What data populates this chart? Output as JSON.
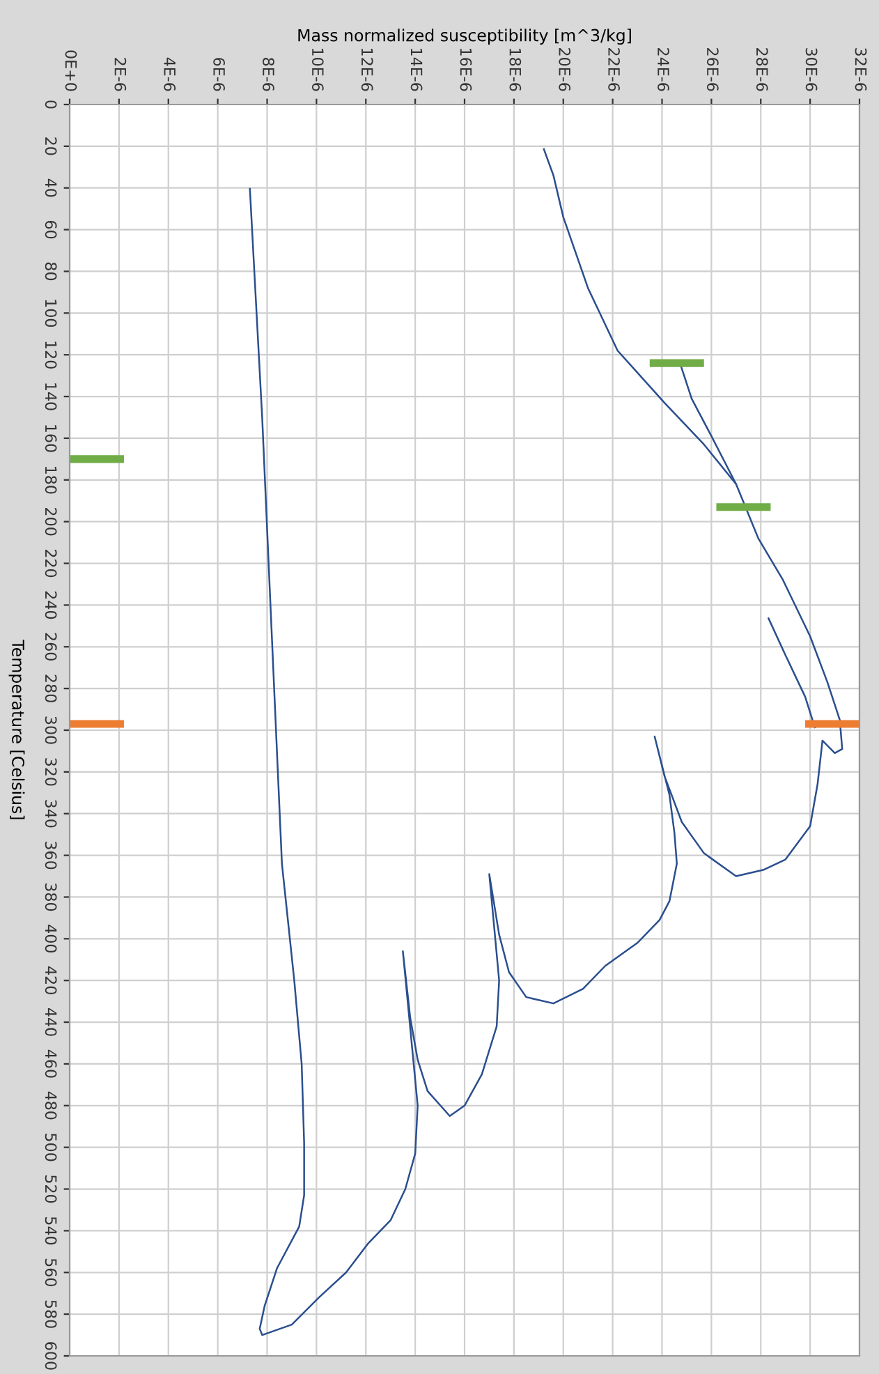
{
  "chart_data": {
    "type": "line",
    "xlabel": "Mass normalized susceptibility [m^3/kg]",
    "ylabel": "Temperature [Celsius]",
    "xlim": [
      0,
      3.2e-05
    ],
    "ylim": [
      600,
      0
    ],
    "xticks": [
      {
        "value": 0,
        "label": "0E+0"
      },
      {
        "value": 2e-06,
        "label": "2E-6"
      },
      {
        "value": 4e-06,
        "label": "4E-6"
      },
      {
        "value": 6e-06,
        "label": "6E-6"
      },
      {
        "value": 8e-06,
        "label": "8E-6"
      },
      {
        "value": 1e-05,
        "label": "10E-6"
      },
      {
        "value": 1.2e-05,
        "label": "12E-6"
      },
      {
        "value": 1.4e-05,
        "label": "14E-6"
      },
      {
        "value": 1.6e-05,
        "label": "16E-6"
      },
      {
        "value": 1.8e-05,
        "label": "18E-6"
      },
      {
        "value": 2e-05,
        "label": "20E-6"
      },
      {
        "value": 2.2e-05,
        "label": "22E-6"
      },
      {
        "value": 2.4e-05,
        "label": "24E-6"
      },
      {
        "value": 2.6e-05,
        "label": "26E-6"
      },
      {
        "value": 2.8e-05,
        "label": "28E-6"
      },
      {
        "value": 3e-05,
        "label": "30E-6"
      },
      {
        "value": 3.2e-05,
        "label": "32E-6"
      }
    ],
    "yticks": [
      0,
      20,
      40,
      60,
      80,
      100,
      120,
      140,
      160,
      180,
      200,
      220,
      240,
      260,
      280,
      300,
      320,
      340,
      360,
      380,
      400,
      420,
      440,
      460,
      480,
      500,
      520,
      540,
      560,
      580,
      600
    ],
    "grid": true,
    "series": [
      {
        "color": "#2b4f8e",
        "x": [
          1.92e-05,
          1.96e-05,
          2e-05,
          2.1e-05,
          2.22e-05,
          2.41e-05,
          2.57e-05,
          2.7e-05,
          2.79e-05,
          2.89e-05,
          3e-05,
          3.07e-05,
          3.12e-05,
          3.13e-05,
          3.1e-05,
          3.05e-05,
          3.03e-05,
          3e-05,
          2.9e-05,
          2.81e-05,
          2.7e-05,
          2.57e-05,
          2.48e-05,
          2.41e-05,
          2.37e-05,
          2.43e-05,
          2.45e-05,
          2.46e-05,
          2.43e-05,
          2.39e-05,
          2.3e-05,
          2.17e-05,
          2.08e-05,
          1.96e-05,
          1.85e-05,
          1.78e-05,
          1.74e-05,
          1.7e-05,
          1.74e-05,
          1.73e-05,
          1.67e-05,
          1.6e-05,
          1.54e-05,
          1.45e-05,
          1.41e-05,
          1.38e-05,
          1.35e-05,
          1.41e-05,
          1.4e-05,
          1.36e-05,
          1.3e-05,
          1.21e-05,
          1.12e-05,
          1.01e-05,
          9e-06,
          7.8e-06,
          7.7e-06,
          7.9e-06,
          8.4e-06,
          9.3e-06,
          9.5e-06,
          9.5e-06,
          9.4e-06,
          9.1e-06,
          8.6e-06,
          8.3e-06,
          7.8e-06,
          7.3e-06
        ],
        "values": [
          21,
          34,
          54,
          88,
          118,
          143,
          163,
          182,
          208,
          228,
          255,
          277,
          295,
          309,
          311,
          305,
          326,
          346,
          362,
          367,
          370,
          359,
          344,
          322,
          303,
          331,
          349,
          364,
          382,
          391,
          402,
          413,
          424,
          431,
          428,
          416,
          398,
          369,
          420,
          442,
          465,
          480,
          485,
          473,
          458,
          438,
          406,
          480,
          503,
          520,
          535,
          546,
          560,
          572,
          585,
          590,
          587,
          576,
          558,
          538,
          523,
          498,
          460,
          420,
          364,
          284,
          150,
          40
        ]
      },
      {
        "color": "#2b4f8e",
        "x": [
          2.83e-05,
          2.9e-05,
          2.98e-05,
          3.02e-05
        ],
        "values": [
          246,
          264,
          284,
          299
        ]
      },
      {
        "color": "#2b4f8e",
        "x": [
          2.47e-05,
          2.52e-05,
          2.6e-05,
          2.7e-05
        ],
        "values": [
          123,
          141,
          159,
          182
        ]
      },
      {
        "color": "#70ad47",
        "x": [
          0,
          2.2e-06
        ],
        "values": [
          170,
          170
        ]
      },
      {
        "color": "#70ad47",
        "x": [
          2.35e-05,
          2.57e-05
        ],
        "values": [
          124,
          124
        ]
      },
      {
        "color": "#70ad47",
        "x": [
          2.62e-05,
          2.84e-05
        ],
        "values": [
          193,
          193
        ]
      },
      {
        "color": "#ed7d31",
        "x": [
          0,
          2.2e-06
        ],
        "values": [
          297,
          297
        ]
      },
      {
        "color": "#ed7d31",
        "x": [
          2.98e-05,
          3.2e-05
        ],
        "values": [
          297,
          297
        ]
      }
    ]
  }
}
